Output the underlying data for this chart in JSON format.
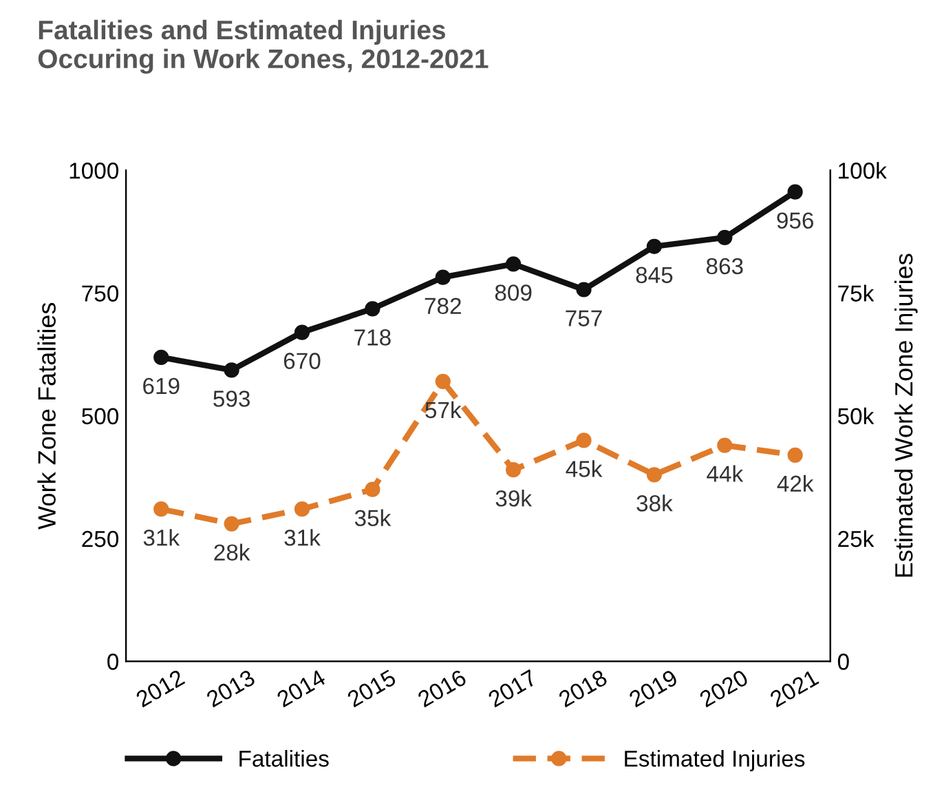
{
  "chart_data": {
    "type": "line",
    "title": "Fatalities and Estimated Injuries\nOccuring in Work Zones, 2012-2021",
    "categories": [
      "2012",
      "2013",
      "2014",
      "2015",
      "2016",
      "2017",
      "2018",
      "2019",
      "2020",
      "2021"
    ],
    "ylabel": "Work Zone Fatalities",
    "y2label": "Estimated Work Zone Injuries",
    "ylim": [
      0,
      1000
    ],
    "yticks": [
      0,
      250,
      500,
      750,
      1000
    ],
    "y2lim": [
      0,
      100000
    ],
    "y2ticks": [
      0,
      {
        "value": 25000,
        "label": "25k"
      },
      {
        "value": 50000,
        "label": "50k"
      },
      {
        "value": 75000,
        "label": "75k"
      },
      {
        "value": 100000,
        "label": "100k"
      }
    ],
    "series": [
      {
        "name": "Fatalities",
        "color": "#111111",
        "line_style": "solid",
        "values": [
          619,
          593,
          670,
          718,
          782,
          809,
          757,
          845,
          863,
          956
        ],
        "value_labels": [
          "619",
          "593",
          "670",
          "718",
          "782",
          "809",
          "757",
          "845",
          "863",
          "956"
        ]
      },
      {
        "name": "Estimated Injuries",
        "color": "#e07b2a",
        "line_style": "dashed",
        "axis": "y2",
        "values": [
          31000,
          28000,
          31000,
          35000,
          57000,
          39000,
          45000,
          38000,
          44000,
          42000
        ],
        "value_labels": [
          "31k",
          "28k",
          "31k",
          "35k",
          "57k",
          "39k",
          "45k",
          "38k",
          "44k",
          "42k"
        ]
      }
    ],
    "marker": "circle",
    "grid": false,
    "legend": "bottom"
  }
}
